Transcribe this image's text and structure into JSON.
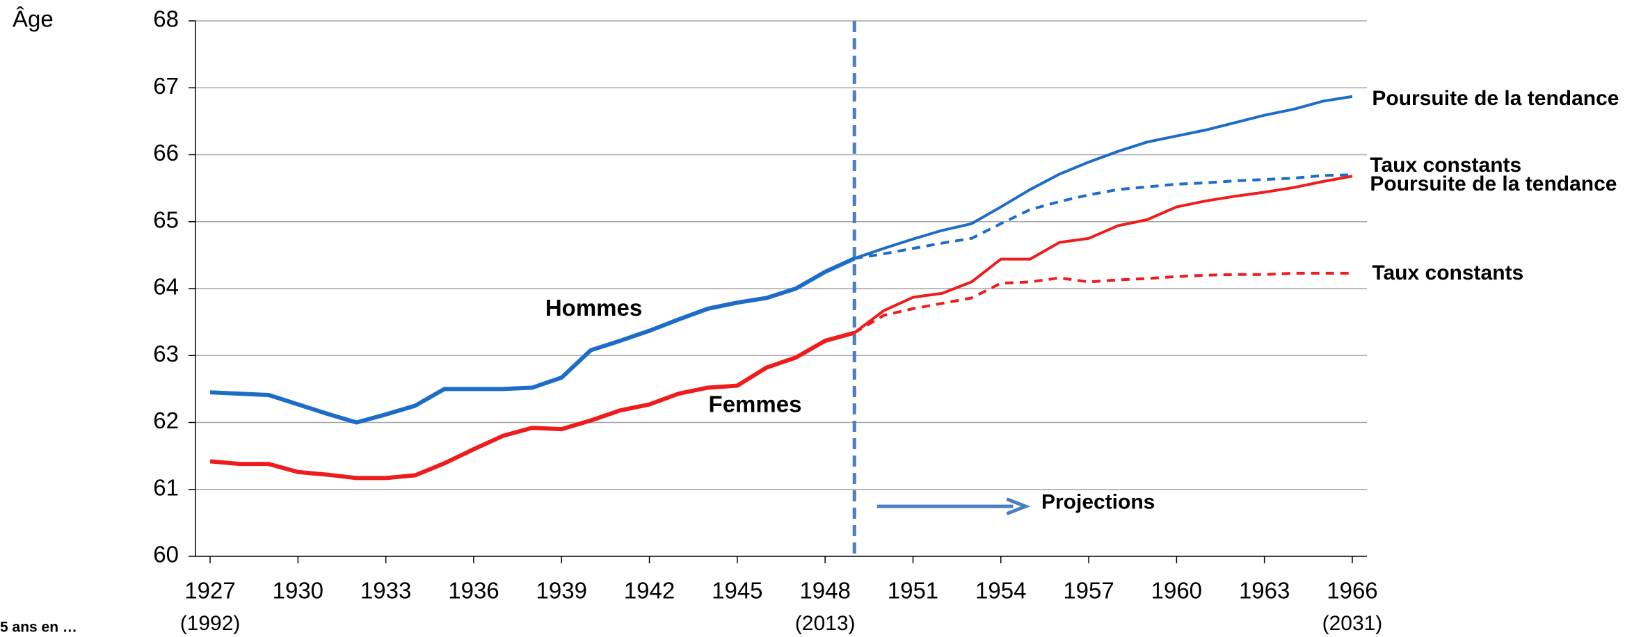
{
  "chart_data": {
    "type": "line",
    "y_label": "Âge",
    "footer": "5 ans en …",
    "x": [
      1927,
      1928,
      1929,
      1930,
      1931,
      1932,
      1933,
      1934,
      1935,
      1936,
      1937,
      1938,
      1939,
      1940,
      1941,
      1942,
      1943,
      1944,
      1945,
      1946,
      1947,
      1948,
      1949,
      1950,
      1951,
      1952,
      1953,
      1954,
      1955,
      1956,
      1957,
      1958,
      1959,
      1960,
      1961,
      1962,
      1963,
      1964,
      1965,
      1966
    ],
    "xlim": [
      1926.5,
      1966.5
    ],
    "xticks": [
      1927,
      1930,
      1933,
      1936,
      1939,
      1942,
      1945,
      1948,
      1951,
      1954,
      1957,
      1960,
      1963,
      1966
    ],
    "x_sublabels": [
      {
        "value": 1927,
        "label": "(1992)"
      },
      {
        "value": 1948,
        "label": "(2013)"
      },
      {
        "value": 1966,
        "label": "(2031)"
      }
    ],
    "ylim": [
      60,
      68
    ],
    "yticks": [
      60,
      61,
      62,
      63,
      64,
      65,
      66,
      67,
      68
    ],
    "grid": true,
    "projection_x": 1949,
    "projection_label": "Projections",
    "series": [
      {
        "name": "Hommes",
        "color": "#1c6cc8",
        "label_color": "#1f3070",
        "dashed": false,
        "width": 6,
        "values": [
          62.45,
          62.43,
          62.41,
          62.27,
          62.13,
          62.0,
          62.12,
          62.25,
          62.5,
          62.5,
          62.5,
          62.52,
          62.67,
          63.08,
          63.22,
          63.37,
          63.54,
          63.7,
          63.79,
          63.86,
          64.0,
          64.25,
          64.45,
          null,
          null,
          null,
          null,
          null,
          null,
          null,
          null,
          null,
          null,
          null,
          null,
          null,
          null,
          null,
          null,
          null
        ]
      },
      {
        "name": "Femmes",
        "color": "#ee1c1c",
        "label_color": "#f04e23",
        "dashed": false,
        "width": 6,
        "values": [
          61.42,
          61.38,
          61.38,
          61.26,
          61.22,
          61.17,
          61.17,
          61.21,
          61.39,
          61.6,
          61.8,
          61.92,
          61.9,
          62.03,
          62.18,
          62.27,
          62.43,
          62.52,
          62.55,
          62.82,
          62.97,
          63.22,
          63.34,
          null,
          null,
          null,
          null,
          null,
          null,
          null,
          null,
          null,
          null,
          null,
          null,
          null,
          null,
          null,
          null,
          null
        ]
      },
      {
        "name": "Poursuite de la tendance",
        "color": "#1c6cc8",
        "label_color": "#1f3070",
        "dashed": false,
        "width": 4,
        "values": [
          null,
          null,
          null,
          null,
          null,
          null,
          null,
          null,
          null,
          null,
          null,
          null,
          null,
          null,
          null,
          null,
          null,
          null,
          null,
          null,
          null,
          null,
          64.45,
          64.6,
          64.74,
          64.87,
          64.97,
          65.22,
          65.48,
          65.71,
          65.89,
          66.05,
          66.19,
          66.28,
          66.37,
          66.48,
          66.59,
          66.68,
          66.8,
          66.87
        ]
      },
      {
        "name": "Taux constants",
        "color": "#1c6cc8",
        "label_color": "#1f3070",
        "dashed": true,
        "width": 4,
        "values": [
          null,
          null,
          null,
          null,
          null,
          null,
          null,
          null,
          null,
          null,
          null,
          null,
          null,
          null,
          null,
          null,
          null,
          null,
          null,
          null,
          null,
          null,
          64.45,
          64.52,
          64.6,
          64.68,
          64.75,
          64.97,
          65.18,
          65.3,
          65.4,
          65.48,
          65.52,
          65.56,
          65.58,
          65.61,
          65.63,
          65.65,
          65.69,
          65.7
        ]
      },
      {
        "name": "Poursuite de la tendance",
        "color": "#ee1c1c",
        "label_color": "#ee1c1c",
        "dashed": false,
        "width": 4,
        "values": [
          null,
          null,
          null,
          null,
          null,
          null,
          null,
          null,
          null,
          null,
          null,
          null,
          null,
          null,
          null,
          null,
          null,
          null,
          null,
          null,
          null,
          null,
          63.34,
          63.67,
          63.87,
          63.93,
          64.1,
          64.44,
          64.44,
          64.69,
          64.75,
          64.94,
          65.03,
          65.22,
          65.31,
          65.38,
          65.44,
          65.51,
          65.6,
          65.68
        ]
      },
      {
        "name": "Taux constants",
        "color": "#ee1c1c",
        "label_color": "#ee1c1c",
        "dashed": true,
        "width": 4,
        "values": [
          null,
          null,
          null,
          null,
          null,
          null,
          null,
          null,
          null,
          null,
          null,
          null,
          null,
          null,
          null,
          null,
          null,
          null,
          null,
          null,
          null,
          null,
          63.34,
          63.6,
          63.7,
          63.78,
          63.86,
          64.08,
          64.1,
          64.16,
          64.1,
          64.13,
          64.15,
          64.18,
          64.2,
          64.21,
          64.21,
          64.23,
          64.23,
          64.23
        ]
      }
    ]
  }
}
